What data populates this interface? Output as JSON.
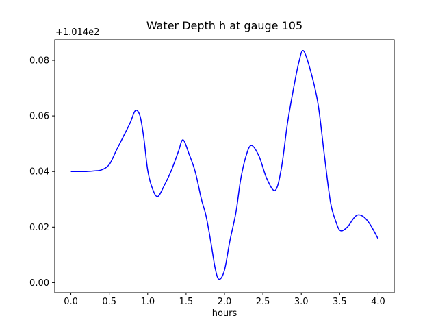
{
  "figure": {
    "background_color": "#ffffff",
    "text_color": "#000000",
    "spine_color": "#000000"
  },
  "chart_data": {
    "type": "line",
    "title": "Water Depth h at gauge 105",
    "xlabel": "hours",
    "ylabel": "",
    "y_offset_label": "+1.014e2",
    "y_offset_value": 101.4,
    "grid": false,
    "legend": null,
    "xlim": [
      -0.21,
      4.21
    ],
    "ylim": [
      -0.0036,
      0.0874
    ],
    "x_ticks": [
      0.0,
      0.5,
      1.0,
      1.5,
      2.0,
      2.5,
      3.0,
      3.5,
      4.0
    ],
    "x_tick_labels": [
      "0.0",
      "0.5",
      "1.0",
      "1.5",
      "2.0",
      "2.5",
      "3.0",
      "3.5",
      "4.0"
    ],
    "y_ticks": [
      0.0,
      0.02,
      0.04,
      0.06,
      0.08
    ],
    "y_tick_labels": [
      "0.00",
      "0.02",
      "0.04",
      "0.06",
      "0.08"
    ],
    "series": [
      {
        "name": "water-depth-h",
        "color": "#0000ff",
        "line_width": 1.5,
        "x": [
          0.0,
          0.1,
          0.2,
          0.3,
          0.4,
          0.5,
          0.59,
          0.68,
          0.77,
          0.84,
          0.9,
          0.95,
          1.0,
          1.06,
          1.13,
          1.22,
          1.31,
          1.4,
          1.46,
          1.54,
          1.62,
          1.7,
          1.76,
          1.82,
          1.88,
          1.93,
          2.0,
          2.07,
          2.15,
          2.21,
          2.28,
          2.35,
          2.45,
          2.55,
          2.66,
          2.74,
          2.82,
          2.9,
          2.97,
          3.03,
          3.13,
          3.22,
          3.3,
          3.38,
          3.45,
          3.51,
          3.6,
          3.68,
          3.74,
          3.82,
          3.9,
          4.0
        ],
        "y": [
          0.04,
          0.04,
          0.04,
          0.0402,
          0.0406,
          0.0425,
          0.0475,
          0.0524,
          0.0574,
          0.0619,
          0.06,
          0.052,
          0.0405,
          0.034,
          0.031,
          0.0352,
          0.0405,
          0.0472,
          0.0514,
          0.0462,
          0.0398,
          0.03,
          0.024,
          0.015,
          0.005,
          0.0012,
          0.0045,
          0.015,
          0.0254,
          0.037,
          0.0455,
          0.0494,
          0.0455,
          0.0375,
          0.0332,
          0.041,
          0.0573,
          0.07,
          0.0795,
          0.0834,
          0.0753,
          0.064,
          0.046,
          0.029,
          0.022,
          0.0187,
          0.02,
          0.0231,
          0.0244,
          0.0235,
          0.0208,
          0.0158
        ]
      }
    ]
  }
}
